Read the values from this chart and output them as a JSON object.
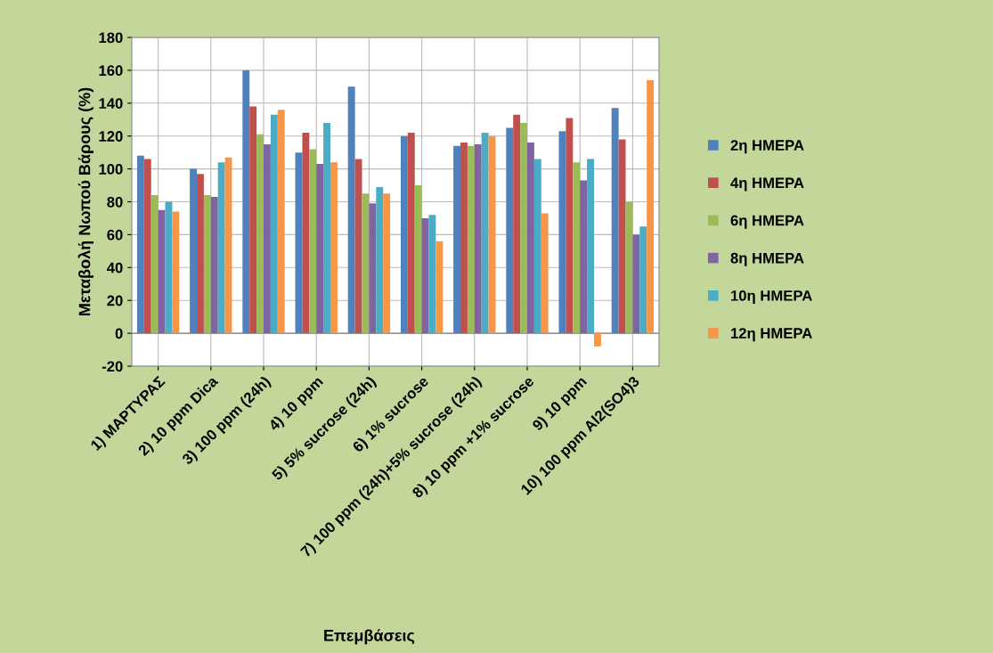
{
  "chart_data": {
    "type": "bar",
    "xlabel": "Επεμβάσεις",
    "ylabel": "Μεταβολή Νωπού Βάρους (%)",
    "categories": [
      "1) ΜΑΡΤΥΡΑΣ",
      "2) 10 ppm Dica",
      "3) 100 ppm (24h)",
      "4) 10 ppm",
      "5) 5% sucrose (24h)",
      "6) 1% sucrose",
      "7) 100 ppm (24h)+5% sucrose (24h)",
      "8) 10 ppm +1% sucrose",
      "9) 10 ppm",
      "10) 100 ppm Al2(SO4)3"
    ],
    "series": [
      {
        "name": "2η ΗΜΕΡΑ",
        "color": "#4f81bd",
        "values": [
          108,
          100,
          160,
          110,
          150,
          120,
          114,
          125,
          123,
          137
        ]
      },
      {
        "name": "4η ΗΜΕΡΑ",
        "color": "#c0504d",
        "values": [
          106,
          97,
          138,
          122,
          106,
          122,
          116,
          133,
          131,
          118
        ]
      },
      {
        "name": "6η ΗΜΕΡΑ",
        "color": "#9bbb59",
        "values": [
          84,
          84,
          121,
          112,
          85,
          90,
          114,
          128,
          104,
          80
        ]
      },
      {
        "name": "8η ΗΜΕΡΑ",
        "color": "#8064a2",
        "values": [
          75,
          83,
          115,
          103,
          79,
          70,
          115,
          116,
          93,
          60
        ]
      },
      {
        "name": "10η ΗΜΕΡΑ",
        "color": "#4bacc6",
        "values": [
          80,
          104,
          133,
          128,
          89,
          72,
          122,
          106,
          106,
          65
        ]
      },
      {
        "name": "12η ΗΜΕΡΑ",
        "color": "#f79646",
        "values": [
          74,
          107,
          136,
          104,
          85,
          56,
          120,
          73,
          -8,
          154
        ]
      }
    ],
    "ylim": [
      -20,
      180
    ],
    "yticks": [
      -20,
      0,
      20,
      40,
      60,
      80,
      100,
      120,
      140,
      160,
      180
    ],
    "grid": true,
    "legend": "right"
  }
}
